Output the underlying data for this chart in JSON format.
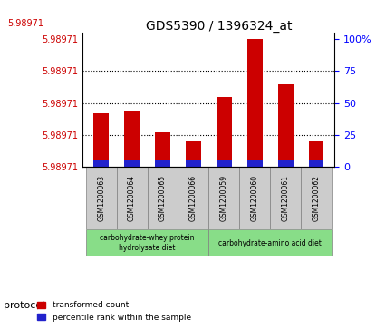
{
  "title": "GDS5390 / 1396324_at",
  "samples": [
    "GSM1200063",
    "GSM1200064",
    "GSM1200065",
    "GSM1200066",
    "GSM1200059",
    "GSM1200060",
    "GSM1200061",
    "GSM1200062"
  ],
  "red_heights": [
    42,
    43,
    27,
    20,
    55,
    100,
    65,
    20
  ],
  "blue_heights": [
    5,
    5,
    5,
    5,
    5,
    5,
    5,
    5
  ],
  "ylim_left": [
    5.98971,
    5.98971
  ],
  "ylim_right": [
    0,
    100
  ],
  "left_yticks": [
    5.98971,
    5.98971,
    5.98971,
    5.98971,
    5.98971
  ],
  "right_yticks": [
    0,
    25,
    50,
    75,
    100
  ],
  "left_ytick_labels": [
    "5.98971",
    "5.98971",
    "5.98971",
    "5.98971",
    "5.98971"
  ],
  "right_ytick_labels": [
    "0",
    "25",
    "50",
    "75",
    "100%"
  ],
  "red_color": "#cc0000",
  "blue_color": "#2222cc",
  "bar_width": 0.5,
  "protocol_group1": [
    "GSM1200063",
    "GSM1200064",
    "GSM1200065",
    "GSM1200066"
  ],
  "protocol_group2": [
    "GSM1200059",
    "GSM1200060",
    "GSM1200061",
    "GSM1200062"
  ],
  "protocol_label1": "carbohydrate-whey protein\nhydrolysate diet",
  "protocol_label2": "carbohydrate-amino acid diet",
  "protocol_color": "#88dd88",
  "sample_box_color": "#cccccc",
  "background_color": "#ffffff",
  "grid_color": "#000000",
  "legend_red": "transformed count",
  "legend_blue": "percentile rank within the sample"
}
